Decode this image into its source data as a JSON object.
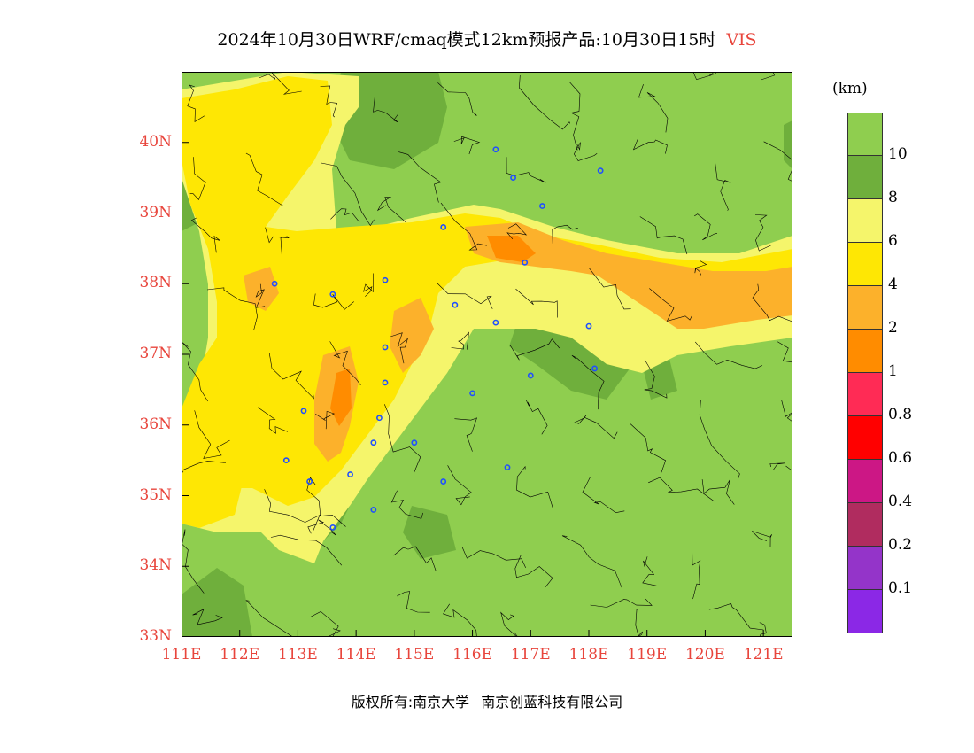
{
  "title": {
    "main": "2024年10月30日WRF/cmaq模式12km预报产品:10月30日15时",
    "variable": "VIS"
  },
  "map": {
    "lon_range": [
      111,
      121.5
    ],
    "lat_range": [
      33,
      41
    ],
    "x_ticks": [
      "111E",
      "112E",
      "113E",
      "114E",
      "115E",
      "116E",
      "117E",
      "118E",
      "119E",
      "120E",
      "121E"
    ],
    "y_ticks": [
      "33N",
      "34N",
      "35N",
      "36N",
      "37N",
      "38N",
      "39N",
      "40N"
    ],
    "stations": [
      [
        116.4,
        39.9
      ],
      [
        116.7,
        39.5
      ],
      [
        117.2,
        39.1
      ],
      [
        118.2,
        39.6
      ],
      [
        115.5,
        38.8
      ],
      [
        116.9,
        38.3
      ],
      [
        112.6,
        38.0
      ],
      [
        113.6,
        37.85
      ],
      [
        114.5,
        38.05
      ],
      [
        115.7,
        37.7
      ],
      [
        116.4,
        37.45
      ],
      [
        118.0,
        37.4
      ],
      [
        114.5,
        37.1
      ],
      [
        118.1,
        36.8
      ],
      [
        117.0,
        36.7
      ],
      [
        114.5,
        36.6
      ],
      [
        116.0,
        36.45
      ],
      [
        113.1,
        36.2
      ],
      [
        114.4,
        36.1
      ],
      [
        114.3,
        35.75
      ],
      [
        115.0,
        35.75
      ],
      [
        112.8,
        35.5
      ],
      [
        113.2,
        35.2
      ],
      [
        113.9,
        35.3
      ],
      [
        116.6,
        35.4
      ],
      [
        115.5,
        35.2
      ],
      [
        114.3,
        34.8
      ],
      [
        113.6,
        34.55
      ]
    ],
    "colors": {
      "v10plus": "#8fce4f",
      "v8": "#6faf3c",
      "v6": "#f5f56b",
      "v4": "#fee704",
      "v2": "#fcb12b",
      "v1": "#ff8c00",
      "border": "#000000",
      "station": "#1f4fff"
    }
  },
  "legend": {
    "unit": "(km)",
    "labels": [
      "10",
      "8",
      "6",
      "4",
      "2",
      "1",
      "0.8",
      "0.6",
      "0.4",
      "0.2",
      "0.1"
    ],
    "colors": [
      "#8fce4f",
      "#6faf3c",
      "#f5f56b",
      "#fee704",
      "#fcb12b",
      "#ff8c00",
      "#ff2b55",
      "#ff0000",
      "#cc1785",
      "#b02c5f",
      "#9434c9",
      "#8b28e6"
    ]
  },
  "footer": {
    "left": "版权所有:南京大学",
    "right": "南京创蓝科技有限公司"
  }
}
